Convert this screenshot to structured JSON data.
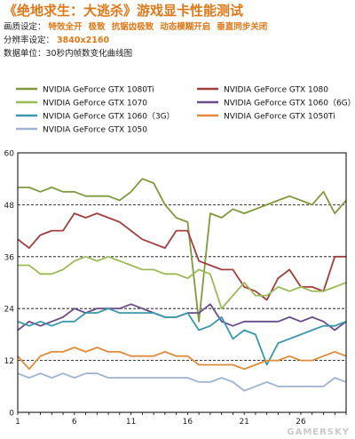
{
  "header": {
    "title": "《绝地求生：大逃杀》游戏显卡性能测试",
    "quality_label": "画质设定：",
    "quality_items": [
      "特效全开",
      "极致",
      "抗锯齿极致",
      "动态模糊开启",
      "垂直同步关闭"
    ],
    "resolution_label": "分辨率设定：",
    "resolution_value": "3840x2160",
    "unit_text": "数据单位：30秒内帧数变化曲线图"
  },
  "watermark": "GAMERSKY",
  "colors": {
    "accent": "#e07818",
    "grid": "#000000"
  },
  "chart_data": {
    "type": "line",
    "title": "",
    "xlabel": "",
    "ylabel": "",
    "ylim": [
      0,
      60
    ],
    "xlim": [
      1,
      30
    ],
    "yticks": [
      0,
      12,
      24,
      36,
      48,
      60
    ],
    "xticks": [
      1,
      6,
      11,
      16,
      21,
      26
    ],
    "grid": "horizontal dashed",
    "legend": "top, 2 columns",
    "x": [
      1,
      2,
      3,
      4,
      5,
      6,
      7,
      8,
      9,
      10,
      11,
      12,
      13,
      14,
      15,
      16,
      17,
      18,
      19,
      20,
      21,
      22,
      23,
      24,
      25,
      26,
      27,
      28,
      29,
      30
    ],
    "series": [
      {
        "name": "NVIDIA GeForce GTX 1080Ti",
        "color": "#7f9a3e",
        "values": [
          52,
          52,
          51,
          52,
          51,
          51,
          50,
          50,
          50,
          49,
          51,
          54,
          53,
          48,
          45,
          44,
          21,
          46,
          45,
          47,
          46,
          47,
          48,
          49,
          50,
          49,
          48,
          51,
          46,
          49
        ]
      },
      {
        "name": "NVIDIA GeForce GTX 1080",
        "color": "#a0403e",
        "values": [
          40,
          38,
          41,
          42,
          42,
          46,
          45,
          46,
          45,
          44,
          42,
          40,
          39,
          38,
          42,
          42,
          35,
          34,
          33,
          33,
          29,
          28,
          26,
          31,
          33,
          29,
          29,
          28,
          36,
          36
        ]
      },
      {
        "name": "NVIDIA GeForce GTX 1070",
        "color": "#9bbb59",
        "values": [
          34,
          34,
          32,
          32,
          33,
          35,
          36,
          35,
          36,
          35,
          34,
          33,
          33,
          32,
          32,
          31,
          33,
          32,
          24,
          27,
          30,
          27,
          27,
          29,
          28,
          29,
          28,
          28,
          29,
          30
        ]
      },
      {
        "name": "NVIDIA GeForce GTX 1060（6G）",
        "color": "#6b4c8a",
        "values": [
          19,
          21,
          20,
          21,
          22,
          24,
          23,
          24,
          24,
          24,
          25,
          24,
          23,
          22,
          22,
          23,
          23,
          25,
          21,
          20,
          21,
          21,
          21,
          21,
          22,
          21,
          22,
          21,
          19,
          21
        ]
      },
      {
        "name": "NVIDIA GeForce GTX 1060（3G）",
        "color": "#3b97ad",
        "values": [
          21,
          20,
          21,
          20,
          21,
          21,
          23,
          23,
          24,
          23,
          23,
          23,
          23,
          22,
          22,
          23,
          19,
          20,
          22,
          17,
          19,
          18,
          11,
          16,
          17,
          18,
          19,
          20,
          20,
          21
        ]
      },
      {
        "name": "NVIDIA GeForce GTX 1050Ti",
        "color": "#e08a3c",
        "values": [
          13,
          10,
          13,
          14,
          14,
          15,
          14,
          15,
          14,
          14,
          13,
          13,
          13,
          14,
          13,
          13,
          11,
          11,
          11,
          11,
          10,
          11,
          12,
          12,
          13,
          12,
          12,
          13,
          14,
          13
        ]
      },
      {
        "name": "NVIDIA GeForce GTX 1050",
        "color": "#9fb3d3",
        "values": [
          9,
          8,
          9,
          8,
          9,
          8,
          9,
          9,
          8,
          8,
          8,
          8,
          8,
          8,
          8,
          8,
          7,
          7,
          8,
          7,
          5,
          6,
          7,
          6,
          6,
          6,
          6,
          6,
          8,
          7
        ]
      }
    ]
  }
}
